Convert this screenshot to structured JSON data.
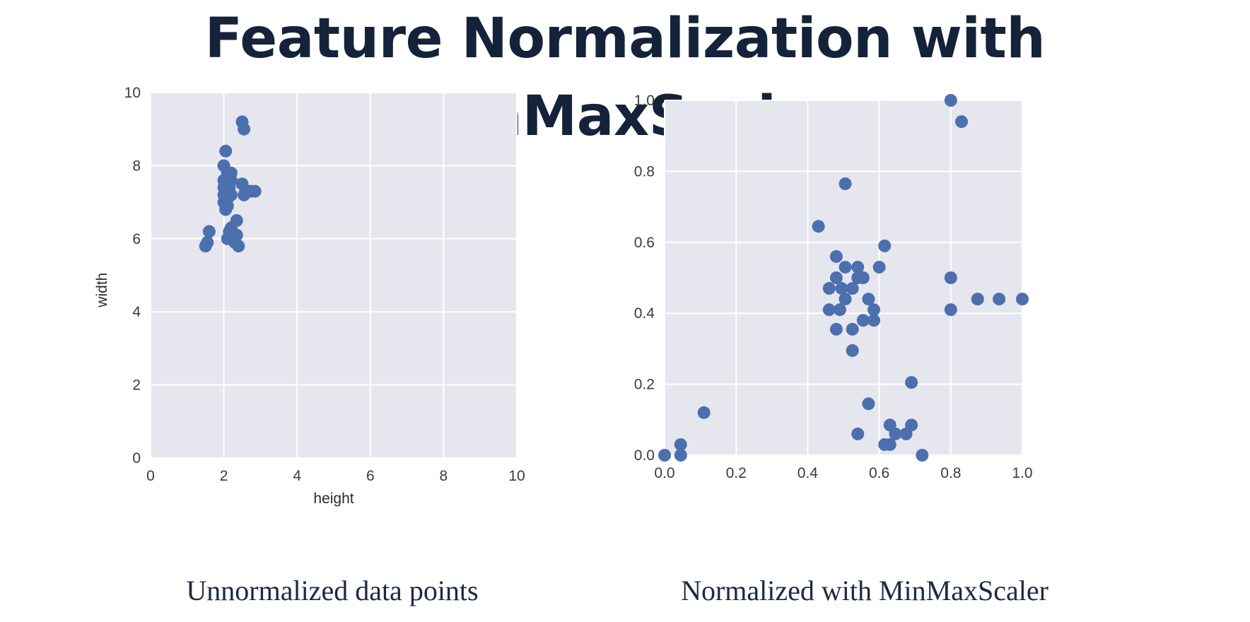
{
  "title": "Feature Normalization with MinMaxScaler",
  "colors": {
    "plot_bg": "#e6e6ef",
    "grid": "#ffffff",
    "marker": "#4c6fae",
    "title": "#14233a",
    "caption": "#1b2a44"
  },
  "chart_data": [
    {
      "type": "scatter",
      "caption": "Unnormalized data points",
      "xlabel": "height",
      "ylabel": "width",
      "xlim": [
        0,
        10
      ],
      "ylim": [
        0,
        10
      ],
      "xticks": [
        "0",
        "2",
        "4",
        "6",
        "8",
        "10"
      ],
      "yticks": [
        "0",
        "2",
        "4",
        "6",
        "8",
        "10"
      ],
      "grid": true,
      "points": [
        {
          "x": 1.5,
          "y": 5.8
        },
        {
          "x": 1.55,
          "y": 5.9
        },
        {
          "x": 1.6,
          "y": 6.2
        },
        {
          "x": 2.0,
          "y": 8.0
        },
        {
          "x": 2.05,
          "y": 8.4
        },
        {
          "x": 2.0,
          "y": 7.6
        },
        {
          "x": 2.0,
          "y": 7.4
        },
        {
          "x": 2.0,
          "y": 7.2
        },
        {
          "x": 2.0,
          "y": 7.0
        },
        {
          "x": 2.05,
          "y": 6.8
        },
        {
          "x": 2.1,
          "y": 7.8
        },
        {
          "x": 2.1,
          "y": 7.5
        },
        {
          "x": 2.1,
          "y": 7.3
        },
        {
          "x": 2.1,
          "y": 7.1
        },
        {
          "x": 2.1,
          "y": 6.9
        },
        {
          "x": 2.15,
          "y": 7.4
        },
        {
          "x": 2.2,
          "y": 7.8
        },
        {
          "x": 2.2,
          "y": 7.6
        },
        {
          "x": 2.2,
          "y": 7.2
        },
        {
          "x": 2.1,
          "y": 6.0
        },
        {
          "x": 2.15,
          "y": 6.2
        },
        {
          "x": 2.2,
          "y": 6.3
        },
        {
          "x": 2.25,
          "y": 6.0
        },
        {
          "x": 2.3,
          "y": 5.9
        },
        {
          "x": 2.35,
          "y": 6.1
        },
        {
          "x": 2.35,
          "y": 6.5
        },
        {
          "x": 2.4,
          "y": 5.8
        },
        {
          "x": 2.5,
          "y": 9.2
        },
        {
          "x": 2.55,
          "y": 9.0
        },
        {
          "x": 2.5,
          "y": 7.5
        },
        {
          "x": 2.55,
          "y": 7.2
        },
        {
          "x": 2.65,
          "y": 7.3
        },
        {
          "x": 2.75,
          "y": 7.3
        },
        {
          "x": 2.85,
          "y": 7.3
        }
      ]
    },
    {
      "type": "scatter",
      "caption": "Normalized with MinMaxScaler",
      "xlabel": "",
      "ylabel": "",
      "xlim": [
        0,
        1
      ],
      "ylim": [
        0,
        1
      ],
      "xticks": [
        "0.0",
        "0.2",
        "0.4",
        "0.6",
        "0.8",
        "1.0"
      ],
      "yticks": [
        "0.0",
        "0.2",
        "0.4",
        "0.6",
        "0.8",
        "1.0"
      ],
      "grid": true,
      "points": [
        {
          "x": 0.0,
          "y": 0.0
        },
        {
          "x": 0.045,
          "y": 0.0
        },
        {
          "x": 0.045,
          "y": 0.03
        },
        {
          "x": 0.11,
          "y": 0.12
        },
        {
          "x": 0.43,
          "y": 0.645
        },
        {
          "x": 0.505,
          "y": 0.765
        },
        {
          "x": 0.8,
          "y": 1.0
        },
        {
          "x": 0.83,
          "y": 0.94
        },
        {
          "x": 0.48,
          "y": 0.56
        },
        {
          "x": 0.505,
          "y": 0.53
        },
        {
          "x": 0.54,
          "y": 0.53
        },
        {
          "x": 0.54,
          "y": 0.5
        },
        {
          "x": 0.555,
          "y": 0.5
        },
        {
          "x": 0.6,
          "y": 0.53
        },
        {
          "x": 0.615,
          "y": 0.59
        },
        {
          "x": 0.48,
          "y": 0.5
        },
        {
          "x": 0.46,
          "y": 0.47
        },
        {
          "x": 0.495,
          "y": 0.47
        },
        {
          "x": 0.525,
          "y": 0.47
        },
        {
          "x": 0.505,
          "y": 0.44
        },
        {
          "x": 0.57,
          "y": 0.44
        },
        {
          "x": 0.46,
          "y": 0.41
        },
        {
          "x": 0.49,
          "y": 0.41
        },
        {
          "x": 0.585,
          "y": 0.41
        },
        {
          "x": 0.555,
          "y": 0.38
        },
        {
          "x": 0.585,
          "y": 0.38
        },
        {
          "x": 0.48,
          "y": 0.355
        },
        {
          "x": 0.525,
          "y": 0.355
        },
        {
          "x": 0.525,
          "y": 0.295
        },
        {
          "x": 0.8,
          "y": 0.5
        },
        {
          "x": 0.8,
          "y": 0.41
        },
        {
          "x": 0.875,
          "y": 0.44
        },
        {
          "x": 0.935,
          "y": 0.44
        },
        {
          "x": 1.0,
          "y": 0.44
        },
        {
          "x": 0.69,
          "y": 0.205
        },
        {
          "x": 0.57,
          "y": 0.145
        },
        {
          "x": 0.63,
          "y": 0.085
        },
        {
          "x": 0.69,
          "y": 0.085
        },
        {
          "x": 0.54,
          "y": 0.06
        },
        {
          "x": 0.645,
          "y": 0.06
        },
        {
          "x": 0.675,
          "y": 0.06
        },
        {
          "x": 0.615,
          "y": 0.03
        },
        {
          "x": 0.63,
          "y": 0.03
        },
        {
          "x": 0.72,
          "y": 0.0
        }
      ]
    }
  ]
}
